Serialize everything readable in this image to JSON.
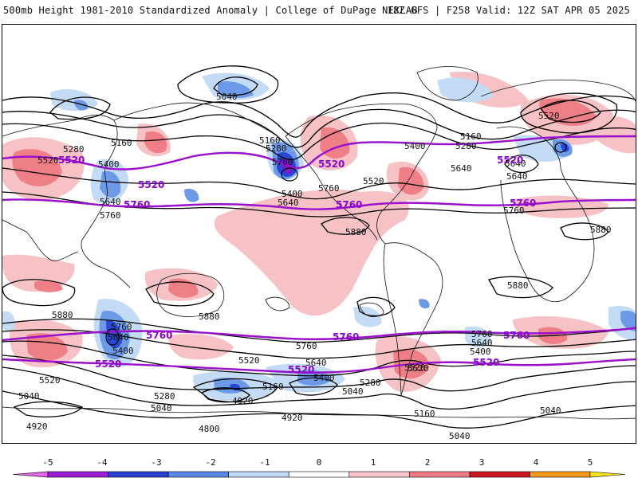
{
  "header": {
    "left": "500mb Height 1981-2010 Standardized Anomaly | College of DuPage NEXLAB",
    "right": "18Z GFS | F258 Valid: 12Z SAT APR 05 2025"
  },
  "colors": {
    "contour": "#000000",
    "highlight_contour": "#9a10cc",
    "positive_light": "#f6c2c6",
    "positive_mid": "#ee7f86",
    "negative_light": "#c4dbf5",
    "negative_mid": "#6d9ae6",
    "negative_strong": "#2a48d6"
  },
  "contour_labels": [
    {
      "id": "l5040a",
      "text": "5040"
    },
    {
      "id": "l5160a",
      "text": "5160"
    },
    {
      "id": "l5280a",
      "text": "5280"
    },
    {
      "id": "l5400a",
      "text": "5400"
    },
    {
      "id": "l5520a",
      "text": "5520"
    },
    {
      "id": "l5640a",
      "text": "5640"
    },
    {
      "id": "l5760a",
      "text": "5760"
    },
    {
      "id": "l5160b",
      "text": "5160"
    },
    {
      "id": "l5280b",
      "text": "5280"
    },
    {
      "id": "l5400b",
      "text": "5400"
    },
    {
      "id": "l5640b",
      "text": "5640"
    },
    {
      "id": "l5760b",
      "text": "5760"
    },
    {
      "id": "l5880a",
      "text": "5880"
    },
    {
      "id": "l5520b",
      "text": "5520"
    },
    {
      "id": "l5400c",
      "text": "5400"
    },
    {
      "id": "l5160c",
      "text": "5160"
    },
    {
      "id": "l5280c",
      "text": "5280"
    },
    {
      "id": "l5520c",
      "text": "5520"
    },
    {
      "id": "l5640c",
      "text": "5640"
    },
    {
      "id": "l5640d",
      "text": "5640"
    },
    {
      "id": "l5760c",
      "text": "5760"
    },
    {
      "id": "l5880b",
      "text": "5880"
    },
    {
      "id": "l5880c",
      "text": "5880"
    },
    {
      "id": "l5880d",
      "text": "5880"
    },
    {
      "id": "l5880e",
      "text": "5880"
    },
    {
      "id": "l5760d",
      "text": "5760"
    },
    {
      "id": "l5640e",
      "text": "5640"
    },
    {
      "id": "l5400d",
      "text": "5400"
    },
    {
      "id": "l5520d",
      "text": "5520"
    },
    {
      "id": "l5040b",
      "text": "5040"
    },
    {
      "id": "l4920a",
      "text": "4920"
    },
    {
      "id": "l5280d",
      "text": "5280"
    },
    {
      "id": "l5040c",
      "text": "5040"
    },
    {
      "id": "l4920b",
      "text": "4920"
    },
    {
      "id": "l4800a",
      "text": "4800"
    },
    {
      "id": "l5520e",
      "text": "5520"
    },
    {
      "id": "l5160d",
      "text": "5160"
    },
    {
      "id": "l5760e",
      "text": "5760"
    },
    {
      "id": "l5640f",
      "text": "5640"
    },
    {
      "id": "l5520f",
      "text": "5520"
    },
    {
      "id": "l5400e",
      "text": "5400"
    },
    {
      "id": "l5040d",
      "text": "5040"
    },
    {
      "id": "l5280e",
      "text": "5280"
    },
    {
      "id": "l4920c",
      "text": "4920"
    },
    {
      "id": "l5520g",
      "text": "5520"
    },
    {
      "id": "l5160e",
      "text": "5160"
    },
    {
      "id": "l5040e",
      "text": "5040"
    },
    {
      "id": "l5760f",
      "text": "5760"
    },
    {
      "id": "l5640g",
      "text": "5640"
    },
    {
      "id": "l5400f",
      "text": "5400"
    },
    {
      "id": "l5040f",
      "text": "5040"
    },
    {
      "id": "l5760g",
      "text": "5760"
    },
    {
      "id": "l5640h",
      "text": "5640"
    }
  ],
  "highlight_labels": [
    {
      "id": "p5520a",
      "text": "5520"
    },
    {
      "id": "p5520b",
      "text": "5520"
    },
    {
      "id": "p5520c",
      "text": "5520"
    },
    {
      "id": "p5520d",
      "text": "5520"
    },
    {
      "id": "p5760a",
      "text": "5760"
    },
    {
      "id": "p5760b",
      "text": "5760"
    },
    {
      "id": "p5760c",
      "text": "5760"
    },
    {
      "id": "p5760d",
      "text": "5760"
    },
    {
      "id": "p5760e",
      "text": "5760"
    },
    {
      "id": "p5760f",
      "text": "5760"
    },
    {
      "id": "p5520e",
      "text": "5520"
    },
    {
      "id": "p5520f",
      "text": "5520"
    },
    {
      "id": "p5520g",
      "text": "5520"
    }
  ],
  "colorbar": {
    "ticks": [
      "-5",
      "-4",
      "-3",
      "-2",
      "-1",
      "0",
      "1",
      "2",
      "3",
      "4",
      "5"
    ],
    "bins": [
      {
        "color": "#e066e6",
        "value": -5
      },
      {
        "color": "#9d1cd6",
        "value": -4.5
      },
      {
        "color": "#2b3fd3",
        "value": -3.5
      },
      {
        "color": "#5b87e8",
        "value": -2.5
      },
      {
        "color": "#bfd6f4",
        "value": -1.5
      },
      {
        "color": "#ffffff",
        "value": 0
      },
      {
        "color": "#f8c3c8",
        "value": 1.5
      },
      {
        "color": "#ee7b84",
        "value": 2.5
      },
      {
        "color": "#cd1620",
        "value": 3.5
      },
      {
        "color": "#f39a1a",
        "value": 4.5
      },
      {
        "color": "#f8e21c",
        "value": 5
      }
    ]
  }
}
